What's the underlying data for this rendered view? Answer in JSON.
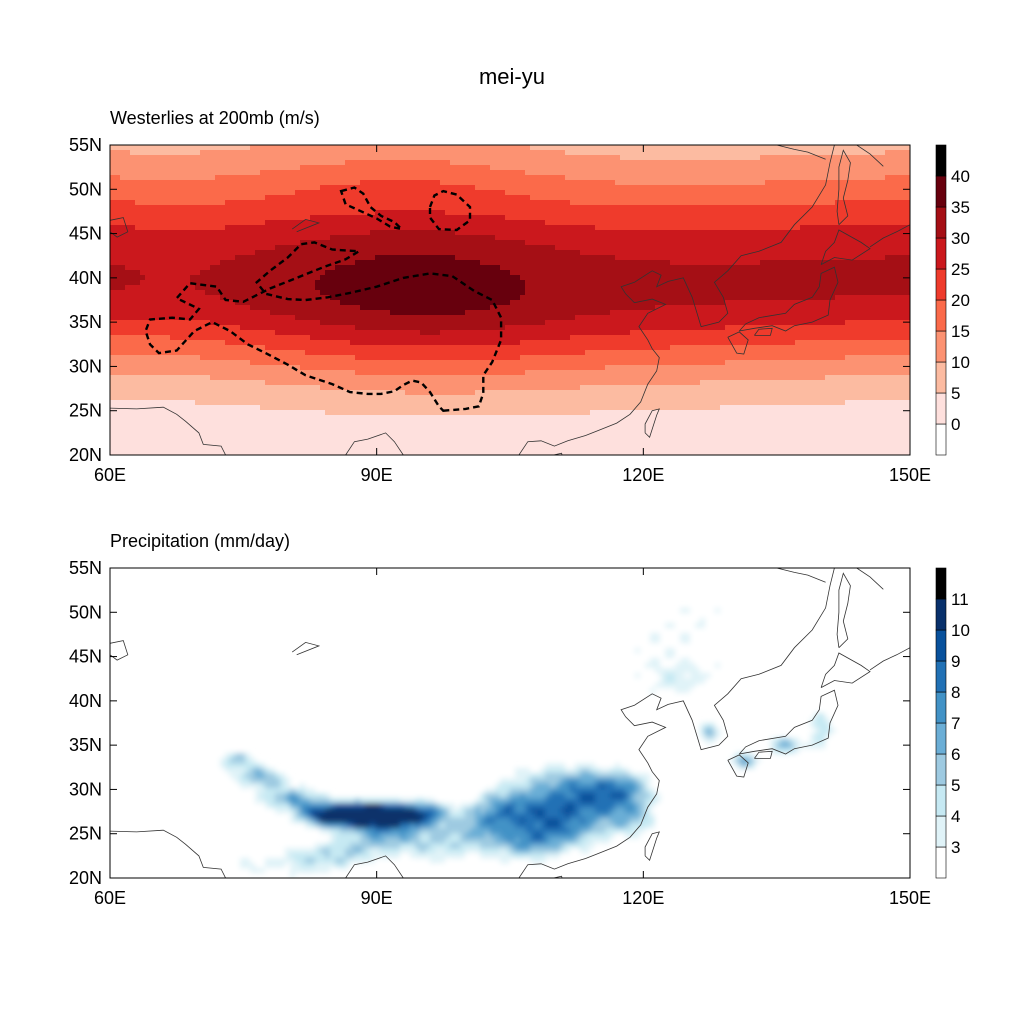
{
  "figure": {
    "title": "mei-yu"
  },
  "colors": {
    "westerlies_palette": [
      "#ffffff",
      "#fee0dd",
      "#fcbba1",
      "#fc9272",
      "#fb6a4a",
      "#ef3b2c",
      "#cb181d",
      "#a50f15",
      "#67000d"
    ],
    "precip_palette": [
      "#ffffff",
      "#e0f3f8",
      "#c6e9f3",
      "#9ecae1",
      "#6baed6",
      "#4292c6",
      "#2171b5",
      "#08519c",
      "#08306b"
    ],
    "coastline": "#333333",
    "outline": "#000000"
  },
  "chart_data": [
    {
      "type": "heatmap",
      "title": "Westerlies at 200mb (m/s)",
      "x_ticks": [
        "60E",
        "90E",
        "120E",
        "150E"
      ],
      "y_ticks": [
        "20N",
        "25N",
        "30N",
        "35N",
        "40N",
        "45N",
        "50N",
        "55N"
      ],
      "xlim": [
        60,
        150
      ],
      "ylim": [
        20,
        55
      ],
      "colorbar": {
        "levels": [
          0,
          5,
          10,
          15,
          20,
          25,
          30,
          35,
          40
        ],
        "labels": [
          "0",
          "5",
          "10",
          "15",
          "20",
          "25",
          "30",
          "35",
          "40"
        ],
        "max": 45
      },
      "jet_core": {
        "latitude": 40,
        "peak_speed": 37
      },
      "tibetan_plateau_outline": {
        "style": "dashed",
        "main": [
          [
            97.5,
            25.0
          ],
          [
            100,
            25.2
          ],
          [
            101.5,
            25.5
          ],
          [
            102,
            27
          ],
          [
            102,
            29
          ],
          [
            103,
            30.5
          ],
          [
            104,
            33
          ],
          [
            104,
            35.5
          ],
          [
            103,
            37.5
          ],
          [
            101,
            38.5
          ],
          [
            98.5,
            40.2
          ],
          [
            96,
            40.5
          ],
          [
            93,
            40
          ],
          [
            90,
            39
          ],
          [
            87,
            38.3
          ],
          [
            84.5,
            37.8
          ],
          [
            82,
            37.5
          ],
          [
            80,
            37.6
          ],
          [
            77.5,
            38.2
          ],
          [
            76.5,
            39.5
          ],
          [
            78,
            40.8
          ],
          [
            80,
            42.3
          ],
          [
            81.5,
            43.8
          ],
          [
            83,
            44
          ],
          [
            85,
            43.2
          ],
          [
            88,
            43
          ],
          [
            86.5,
            42.1
          ],
          [
            84,
            41.2
          ],
          [
            81,
            40
          ],
          [
            78,
            38.8
          ],
          [
            75,
            37.3
          ],
          [
            73,
            37.5
          ],
          [
            72,
            39
          ],
          [
            69,
            39.4
          ],
          [
            67.5,
            37.7
          ],
          [
            70,
            36.5
          ],
          [
            69,
            35.3
          ],
          [
            67,
            35.5
          ],
          [
            64.5,
            35.3
          ],
          [
            64,
            34
          ],
          [
            64.5,
            32.5
          ],
          [
            65.5,
            31.5
          ],
          [
            67.5,
            31.8
          ],
          [
            69.5,
            34
          ],
          [
            71.5,
            35
          ],
          [
            73.5,
            34
          ],
          [
            75.5,
            32.5
          ],
          [
            77.5,
            31.5
          ],
          [
            80,
            30.2
          ],
          [
            82,
            29
          ],
          [
            85,
            28
          ],
          [
            87,
            27.1
          ],
          [
            89,
            26.9
          ],
          [
            90.5,
            26.9
          ],
          [
            92,
            27.2
          ],
          [
            93,
            27.9
          ],
          [
            94,
            28.4
          ],
          [
            95,
            28.2
          ],
          [
            96,
            27.1
          ],
          [
            97,
            25.5
          ],
          [
            97.5,
            25.0
          ]
        ],
        "islands": [
          [
            [
              86,
              49.8
            ],
            [
              87.5,
              50.2
            ],
            [
              88.5,
              49.5
            ],
            [
              89.3,
              48
            ],
            [
              90.5,
              47
            ],
            [
              92,
              46.3
            ],
            [
              92.8,
              45.5
            ],
            [
              91.5,
              45.8
            ],
            [
              90,
              46.7
            ],
            [
              88.5,
              47.4
            ],
            [
              86.5,
              48.3
            ],
            [
              86,
              49.8
            ]
          ],
          [
            [
              96,
              48
            ],
            [
              96.5,
              49.3
            ],
            [
              97.5,
              49.8
            ],
            [
              99,
              49.4
            ],
            [
              100.5,
              48
            ],
            [
              100.5,
              46.5
            ],
            [
              99,
              45.4
            ],
            [
              97,
              45.5
            ],
            [
              96,
              46.8
            ],
            [
              96,
              48
            ]
          ]
        ]
      }
    },
    {
      "type": "heatmap",
      "title": "Precipitation (mm/day)",
      "x_ticks": [
        "60E",
        "90E",
        "120E",
        "150E"
      ],
      "y_ticks": [
        "20N",
        "25N",
        "30N",
        "35N",
        "40N",
        "45N",
        "50N",
        "55N"
      ],
      "xlim": [
        60,
        150
      ],
      "ylim": [
        20,
        55
      ],
      "colorbar": {
        "levels": [
          3,
          4,
          5,
          6,
          7,
          8,
          9,
          10,
          11
        ],
        "labels": [
          "3",
          "4",
          "5",
          "6",
          "7",
          "8",
          "9",
          "10",
          "11"
        ],
        "min": 2,
        "max": 12
      }
    }
  ]
}
